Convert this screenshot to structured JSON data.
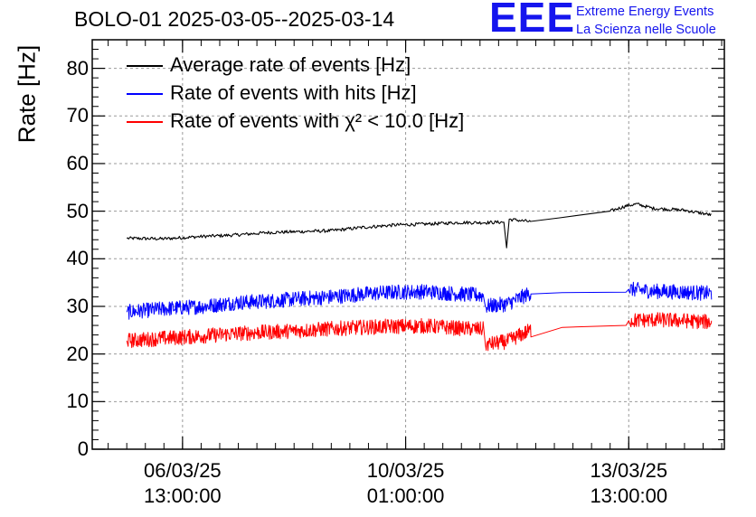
{
  "header": {
    "title": "BOLO-01 2025-03-05--2025-03-14",
    "logo_text": "EEE",
    "logo_line1": "Extreme Energy Events",
    "logo_line2": "La Scienza nelle Scuole"
  },
  "colors": {
    "logo": "#1515ee",
    "black": "#000000",
    "blue": "#0000ff",
    "red": "#ff0000",
    "grid": "#9a9a9a"
  },
  "chart_data": {
    "type": "line",
    "title": "BOLO-01 2025-03-05--2025-03-14",
    "ylabel": "Rate [Hz]",
    "xlabel": "",
    "ylim": [
      0,
      86
    ],
    "xlim": [
      "2025-03-05T03:00",
      "2025-03-15T01:00"
    ],
    "y_ticks": [
      "0",
      "10",
      "20",
      "30",
      "40",
      "50",
      "60",
      "70",
      "80"
    ],
    "x_ticks": [
      {
        "date": "2025-03-06T13:00",
        "line1": "06/03/25",
        "line2": "13:00:00"
      },
      {
        "date": "2025-03-10T01:00",
        "line1": "10/03/25",
        "line2": "01:00:00"
      },
      {
        "date": "2025-03-13T13:00",
        "line1": "13/03/25",
        "line2": "13:00:00"
      }
    ],
    "grid": true,
    "legend_position": "top-left",
    "series": [
      {
        "name": "Average rate of events [Hz]",
        "color": "#000000",
        "x": [
          "2025-03-05T16:00",
          "2025-03-06T06:00",
          "2025-03-06T21:00",
          "2025-03-07T09:00",
          "2025-03-07T21:00",
          "2025-03-08T09:00",
          "2025-03-08T21:00",
          "2025-03-09T09:00",
          "2025-03-09T21:00",
          "2025-03-10T09:00",
          "2025-03-10T21:00",
          "2025-03-11T07:00",
          "2025-03-11T14:00",
          "2025-03-11T15:00",
          "2025-03-11T16:00",
          "2025-03-12T00:00",
          "2025-03-12T11:00",
          "2025-03-13T06:00",
          "2025-03-13T12:00",
          "2025-03-13T16:00",
          "2025-03-13T22:00",
          "2025-03-14T10:00",
          "2025-03-14T20:00"
        ],
        "y": [
          44.3,
          44.2,
          44.7,
          45.0,
          45.5,
          45.7,
          45.9,
          46.6,
          47.1,
          47.3,
          47.6,
          47.6,
          47.7,
          42.3,
          48.3,
          47.8,
          48.6,
          50.0,
          51.1,
          51.5,
          50.6,
          50.2,
          49.2
        ]
      },
      {
        "name": "Rate of events with hits [Hz]",
        "color": "#0000ff",
        "x": [
          "2025-03-05T16:00",
          "2025-03-06T06:00",
          "2025-03-06T21:00",
          "2025-03-07T09:00",
          "2025-03-07T21:00",
          "2025-03-08T09:00",
          "2025-03-08T21:00",
          "2025-03-09T09:00",
          "2025-03-09T21:00",
          "2025-03-10T09:00",
          "2025-03-10T21:00",
          "2025-03-11T06:00",
          "2025-03-11T07:00",
          "2025-03-11T15:00",
          "2025-03-12T00:00",
          "2025-03-12T12:00",
          "2025-03-13T12:00",
          "2025-03-13T13:00",
          "2025-03-13T22:00",
          "2025-03-14T10:00",
          "2025-03-14T20:00"
        ],
        "y": [
          28.8,
          29.5,
          30.0,
          30.8,
          31.1,
          31.6,
          32.0,
          32.6,
          33.0,
          33.1,
          32.6,
          32.3,
          30.0,
          30.5,
          32.8,
          32.9,
          33.0,
          33.6,
          33.2,
          33.0,
          32.7
        ]
      },
      {
        "name": "Rate of events with χ² < 10.0 [Hz]",
        "color": "#ff0000",
        "x": [
          "2025-03-05T16:00",
          "2025-03-06T06:00",
          "2025-03-06T21:00",
          "2025-03-07T09:00",
          "2025-03-07T21:00",
          "2025-03-08T09:00",
          "2025-03-08T21:00",
          "2025-03-09T09:00",
          "2025-03-09T21:00",
          "2025-03-10T09:00",
          "2025-03-10T21:00",
          "2025-03-11T06:00",
          "2025-03-11T07:00",
          "2025-03-11T15:00",
          "2025-03-12T00:00",
          "2025-03-12T12:00",
          "2025-03-13T12:00",
          "2025-03-13T13:00",
          "2025-03-13T22:00",
          "2025-03-14T10:00",
          "2025-03-14T20:00"
        ],
        "y": [
          22.8,
          23.3,
          23.8,
          24.3,
          24.6,
          24.9,
          25.3,
          25.6,
          25.8,
          25.9,
          25.4,
          25.2,
          22.0,
          22.6,
          25.0,
          25.6,
          26.0,
          27.0,
          27.2,
          27.0,
          26.7
        ]
      }
    ]
  }
}
